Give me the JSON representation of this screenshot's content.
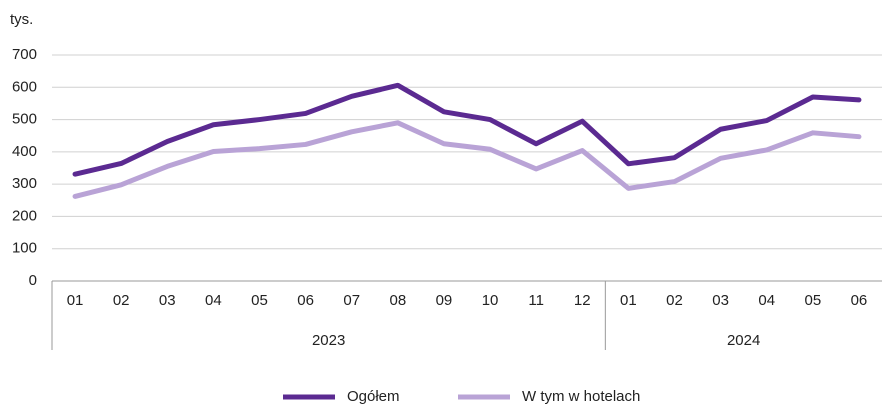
{
  "chart_data": {
    "type": "line",
    "y_label": "tys.",
    "categories": [
      "01",
      "02",
      "03",
      "04",
      "05",
      "06",
      "07",
      "08",
      "09",
      "10",
      "11",
      "12",
      "01",
      "02",
      "03",
      "04",
      "05",
      "06"
    ],
    "groups": [
      {
        "label": "2023",
        "span": 12
      },
      {
        "label": "2024",
        "span": 6
      }
    ],
    "series": [
      {
        "name": "Ogółem",
        "color": "#5b2a91",
        "values": [
          331,
          364,
          432,
          484,
          500,
          519,
          572,
          606,
          524,
          500,
          425,
          495,
          363,
          382,
          470,
          497,
          570,
          561
        ]
      },
      {
        "name": "W tym w hotelach",
        "color": "#b9a3d6",
        "values": [
          262,
          298,
          355,
          401,
          410,
          423,
          462,
          490,
          425,
          408,
          347,
          404,
          287,
          308,
          380,
          406,
          459,
          447
        ]
      }
    ],
    "ylim": [
      0,
      700
    ],
    "yticks": [
      0,
      100,
      200,
      300,
      400,
      500,
      600,
      700
    ],
    "grid": true,
    "legend": "bottom"
  }
}
